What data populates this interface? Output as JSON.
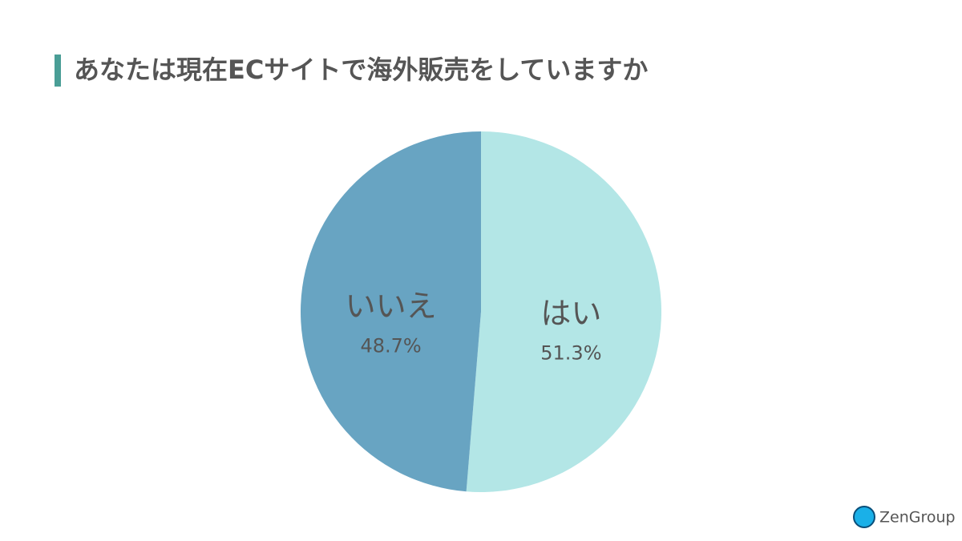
{
  "chart_data": {
    "type": "pie",
    "title": "あなたは現在ECサイトで海外販売をしていますか",
    "categories": [
      "はい",
      "いいえ"
    ],
    "values": [
      51.3,
      48.7
    ],
    "value_labels": [
      "51.3%",
      "48.7%"
    ],
    "colors": [
      "#b3e6e6",
      "#68a4c2"
    ]
  },
  "brand": "ZenGroup"
}
